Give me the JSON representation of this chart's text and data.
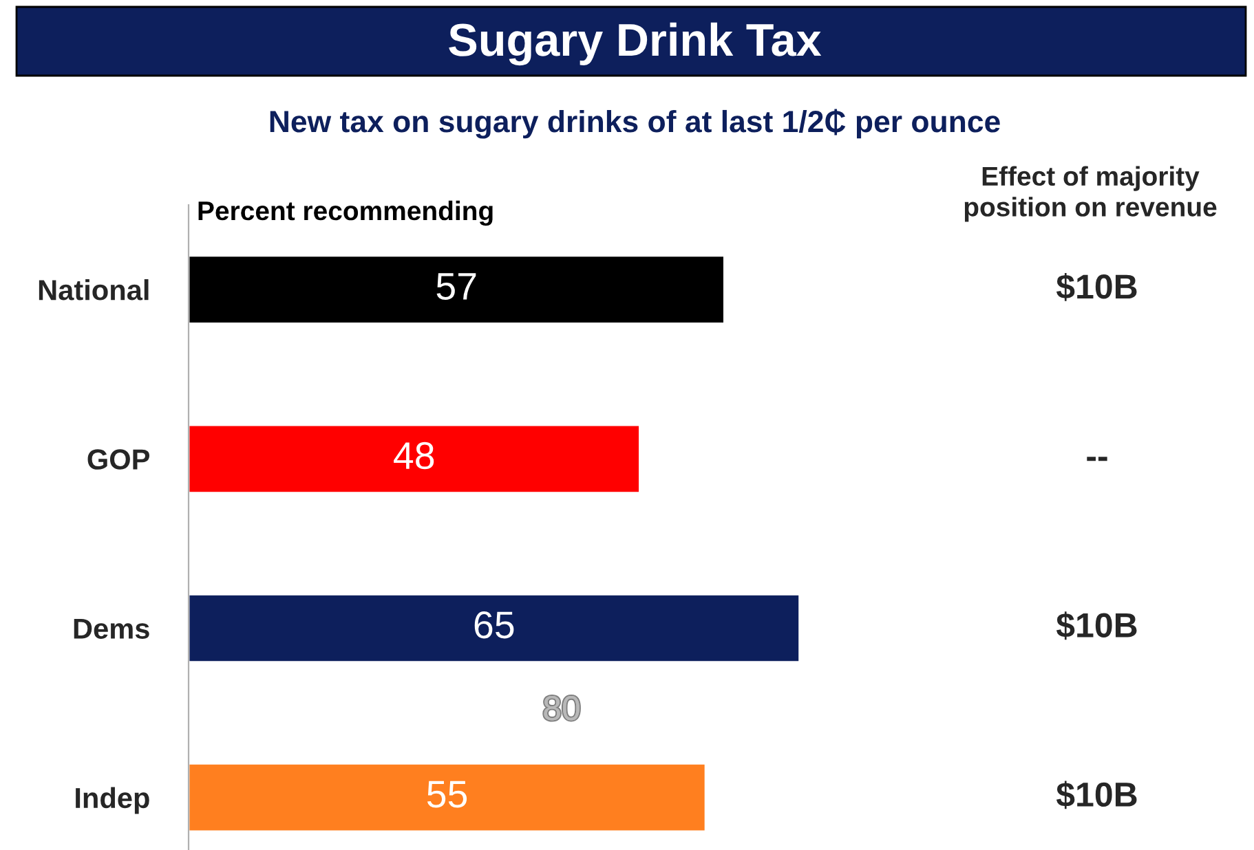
{
  "chart_data": {
    "type": "bar",
    "orientation": "horizontal",
    "title": "Sugary Drink Tax",
    "subtitle": "New tax on sugary drinks of at last 1/2₵ per ounce",
    "xlabel": "Percent recommending",
    "categories": [
      "National",
      "GOP",
      "Dems",
      "Indep"
    ],
    "values": [
      57,
      48,
      65,
      55
    ],
    "colors": [
      "#000000",
      "#ff0000",
      "#0d1f5c",
      "#ff7f1f"
    ],
    "data_labels": true,
    "grid": false,
    "legend": false,
    "tick_labels": "y",
    "annotations": [
      "Effect of majority\nposition on revenue",
      "$10B",
      "--",
      "$10B",
      "$10B",
      "80"
    ]
  }
}
